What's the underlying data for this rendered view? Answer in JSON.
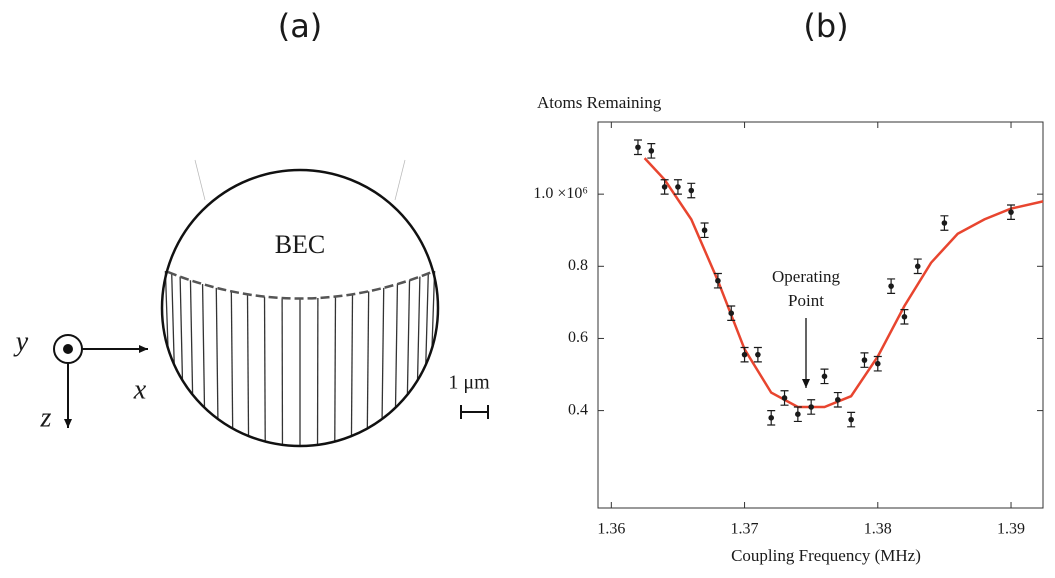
{
  "panel_a": {
    "label": "(a)",
    "bec": "BEC",
    "axis_y": "y",
    "axis_x": "x",
    "axis_z": "z",
    "scale_bar": "1 μm"
  },
  "chart_data": {
    "type": "scatter",
    "panel_label": "(b)",
    "y_label": "Atoms Remaining",
    "x_label": "Coupling Frequency (MHz)",
    "annotation": [
      "Operating",
      "Point"
    ],
    "x": [
      1.362,
      1.363,
      1.364,
      1.365,
      1.366,
      1.367,
      1.368,
      1.369,
      1.37,
      1.371,
      1.372,
      1.373,
      1.374,
      1.375,
      1.376,
      1.377,
      1.378,
      1.379,
      1.38,
      1.381,
      1.382,
      1.383,
      1.385,
      1.39
    ],
    "values": [
      1.13,
      1.12,
      1.02,
      1.02,
      1.01,
      0.9,
      0.76,
      0.67,
      0.555,
      0.555,
      0.38,
      0.435,
      0.39,
      0.41,
      0.495,
      0.43,
      0.375,
      0.54,
      0.53,
      0.745,
      0.66,
      0.8,
      0.92,
      0.95
    ],
    "errors": [
      0.02,
      0.02,
      0.02,
      0.02,
      0.02,
      0.02,
      0.02,
      0.02,
      0.02,
      0.02,
      0.02,
      0.02,
      0.02,
      0.02,
      0.02,
      0.02,
      0.02,
      0.02,
      0.02,
      0.02,
      0.02,
      0.02,
      0.02,
      0.02
    ],
    "color": "#1a1a1a",
    "fit": {
      "x": [
        1.3625,
        1.364,
        1.366,
        1.368,
        1.37,
        1.372,
        1.374,
        1.376,
        1.378,
        1.38,
        1.382,
        1.384,
        1.386,
        1.388,
        1.39,
        1.3924
      ],
      "values": [
        1.1,
        1.04,
        0.93,
        0.76,
        0.57,
        0.45,
        0.41,
        0.41,
        0.44,
        0.55,
        0.69,
        0.81,
        0.89,
        0.93,
        0.96,
        0.98
      ],
      "color": "#e8452f"
    },
    "xlim": [
      1.359,
      1.3924
    ],
    "ylim": [
      0.13,
      1.2
    ],
    "xticks": [
      1.36,
      1.37,
      1.38,
      1.39
    ],
    "yticks": [
      0.4,
      0.6,
      0.8,
      {
        "value": 1.0,
        "label": "1.0 ×10⁶"
      }
    ],
    "grid": false
  }
}
